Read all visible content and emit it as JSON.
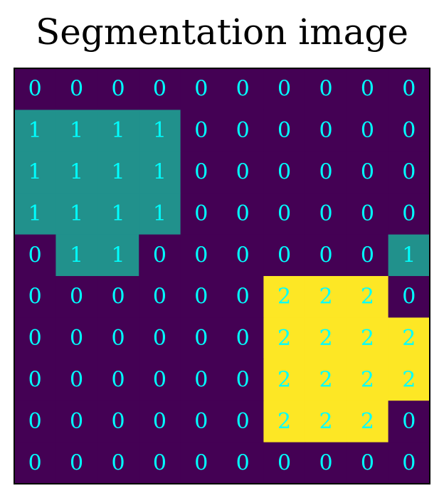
{
  "chart_data": {
    "type": "heatmap",
    "title": "Segmentation image",
    "rows": [
      [
        0,
        0,
        0,
        0,
        0,
        0,
        0,
        0,
        0,
        0
      ],
      [
        1,
        1,
        1,
        1,
        0,
        0,
        0,
        0,
        0,
        0
      ],
      [
        1,
        1,
        1,
        1,
        0,
        0,
        0,
        0,
        0,
        0
      ],
      [
        1,
        1,
        1,
        1,
        0,
        0,
        0,
        0,
        0,
        0
      ],
      [
        0,
        1,
        1,
        0,
        0,
        0,
        0,
        0,
        0,
        1
      ],
      [
        0,
        0,
        0,
        0,
        0,
        0,
        2,
        2,
        2,
        0
      ],
      [
        0,
        0,
        0,
        0,
        0,
        0,
        2,
        2,
        2,
        2
      ],
      [
        0,
        0,
        0,
        0,
        0,
        0,
        2,
        2,
        2,
        2
      ],
      [
        0,
        0,
        0,
        0,
        0,
        0,
        2,
        2,
        2,
        0
      ],
      [
        0,
        0,
        0,
        0,
        0,
        0,
        0,
        0,
        0,
        0
      ]
    ],
    "colormap": {
      "0": "#440154",
      "1": "#21918c",
      "2": "#fde725"
    },
    "label_color": "#00ffff",
    "cell_labels": true,
    "grid": false,
    "axes_visible": false
  }
}
